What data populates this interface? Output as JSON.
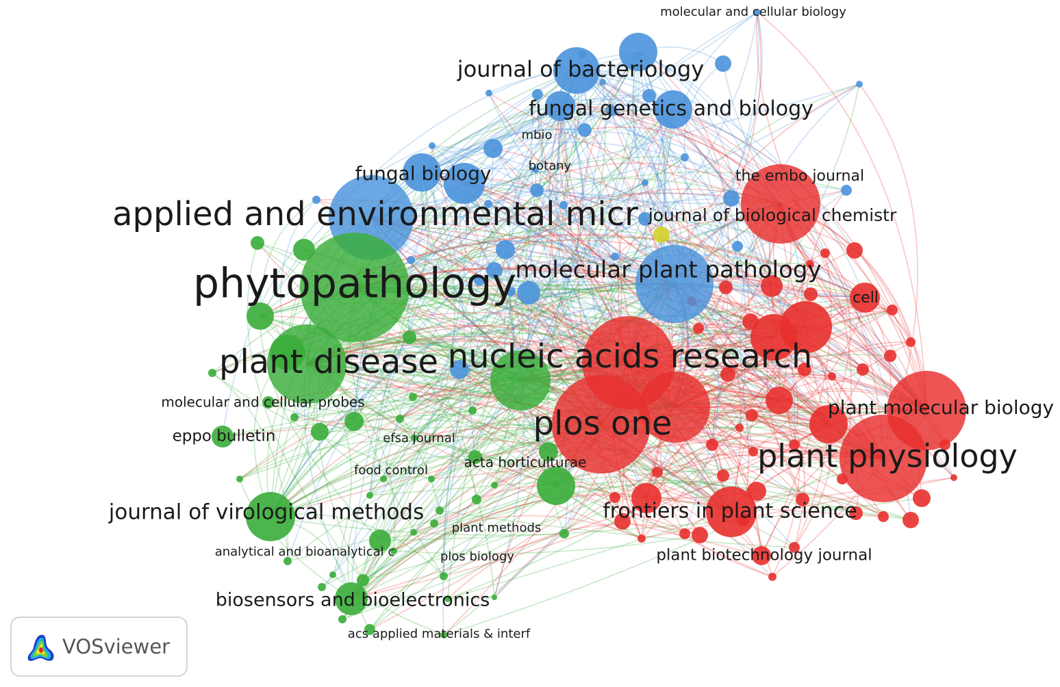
{
  "app": {
    "brand": "VOSviewer",
    "logo_icon": "vosviewer-logo-icon"
  },
  "clusters": [
    {
      "id": "red",
      "color": "#e8302e"
    },
    {
      "id": "green",
      "color": "#3aad3a"
    },
    {
      "id": "blue",
      "color": "#4a94dc"
    },
    {
      "id": "yellow",
      "color": "#d6d22a"
    }
  ],
  "labeled_nodes": [
    {
      "label": "phytopathology",
      "cluster": "green",
      "weight": 10
    },
    {
      "label": "applied and environmental micr",
      "cluster": "blue",
      "weight": 8
    },
    {
      "label": "plant disease",
      "cluster": "green",
      "weight": 8
    },
    {
      "label": "nucleic acids research",
      "cluster": "red",
      "weight": 8
    },
    {
      "label": "plos one",
      "cluster": "red",
      "weight": 8
    },
    {
      "label": "plant physiology",
      "cluster": "red",
      "weight": 8
    },
    {
      "label": "molecular plant pathology",
      "cluster": "blue",
      "weight": 6
    },
    {
      "label": "journal of bacteriology",
      "cluster": "blue",
      "weight": 5
    },
    {
      "label": "fungal genetics and biology",
      "cluster": "blue",
      "weight": 5
    },
    {
      "label": "fungal biology",
      "cluster": "blue",
      "weight": 4
    },
    {
      "label": "journal of biological chemistr",
      "cluster": "red",
      "weight": 4
    },
    {
      "label": "the embo journal",
      "cluster": "red",
      "weight": 4
    },
    {
      "label": "cell",
      "cluster": "red",
      "weight": 3
    },
    {
      "label": "plant molecular biology",
      "cluster": "red",
      "weight": 5
    },
    {
      "label": "frontiers in plant science",
      "cluster": "red",
      "weight": 5
    },
    {
      "label": "plant biotechnology journal",
      "cluster": "red",
      "weight": 3
    },
    {
      "label": "journal of virological methods",
      "cluster": "green",
      "weight": 5
    },
    {
      "label": "biosensors and bioelectronics",
      "cluster": "green",
      "weight": 4
    },
    {
      "label": "eppo bulletin",
      "cluster": "green",
      "weight": 3
    },
    {
      "label": "molecular and cellular probes",
      "cluster": "green",
      "weight": 3
    },
    {
      "label": "efsa journal",
      "cluster": "green",
      "weight": 2
    },
    {
      "label": "food control",
      "cluster": "green",
      "weight": 2
    },
    {
      "label": "acta horticulturae",
      "cluster": "green",
      "weight": 2
    },
    {
      "label": "analytical and bioanalytical c",
      "cluster": "green",
      "weight": 2
    },
    {
      "label": "plant methods",
      "cluster": "green",
      "weight": 2
    },
    {
      "label": "plos biology",
      "cluster": "green",
      "weight": 2
    },
    {
      "label": "acs applied materials & interf",
      "cluster": "green",
      "weight": 2
    },
    {
      "label": "mbio",
      "cluster": "blue",
      "weight": 2
    },
    {
      "label": "botany",
      "cluster": "blue",
      "weight": 2
    },
    {
      "label": "molecular and cellular biology",
      "cluster": "blue",
      "weight": 2
    }
  ]
}
